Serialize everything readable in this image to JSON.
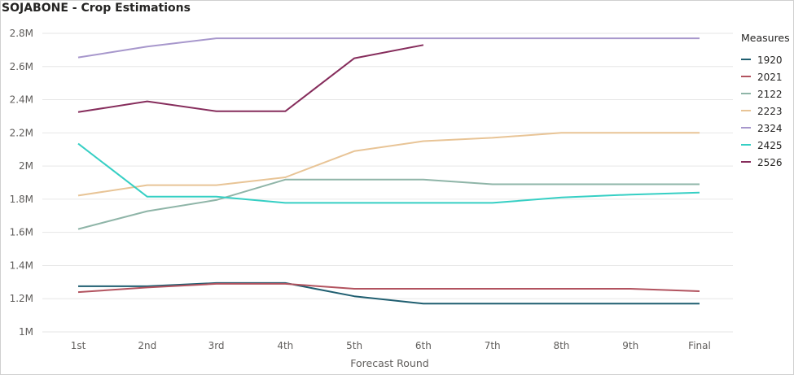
{
  "title": "SOJABONE - Crop Estimations",
  "chart_data": {
    "type": "line",
    "title": "SOJABONE - Crop Estimations",
    "xlabel": "Forecast Round",
    "ylabel": "",
    "categories": [
      "1st",
      "2nd",
      "3rd",
      "4th",
      "5th",
      "6th",
      "7th",
      "8th",
      "9th",
      "Final"
    ],
    "ylim": [
      1000000,
      2800000
    ],
    "yticks": [
      1000000,
      1200000,
      1400000,
      1600000,
      1800000,
      2000000,
      2200000,
      2400000,
      2600000,
      2800000
    ],
    "ytick_labels": [
      "1M",
      "1.2M",
      "1.4M",
      "1.6M",
      "1.8M",
      "2M",
      "2.2M",
      "2.4M",
      "2.6M",
      "2.8M"
    ],
    "grid": true,
    "legend_title": "Measures",
    "legend_position": "right",
    "series": [
      {
        "name": "1920",
        "color": "#1f5e70",
        "values": [
          1275000,
          1275000,
          1295000,
          1295000,
          1215000,
          1170000,
          1170000,
          1170000,
          1170000,
          1170000
        ]
      },
      {
        "name": "2021",
        "color": "#b2535f",
        "values": [
          1240000,
          1268000,
          1290000,
          1290000,
          1260000,
          1260000,
          1260000,
          1260000,
          1260000,
          1245000
        ]
      },
      {
        "name": "2122",
        "color": "#8fb5a8",
        "values": [
          1620000,
          1728000,
          1795000,
          1918000,
          1918000,
          1918000,
          1890000,
          1890000,
          1890000,
          1890000
        ]
      },
      {
        "name": "2223",
        "color": "#e8c496",
        "values": [
          1822000,
          1885000,
          1885000,
          1932000,
          2090000,
          2150000,
          2170000,
          2200000,
          2200000,
          2200000
        ]
      },
      {
        "name": "2324",
        "color": "#a797cc",
        "values": [
          2655000,
          2720000,
          2770000,
          2770000,
          2770000,
          2770000,
          2770000,
          2770000,
          2770000,
          2770000
        ]
      },
      {
        "name": "2425",
        "color": "#36cfc4",
        "values": [
          2135000,
          1815000,
          1815000,
          1778000,
          1778000,
          1778000,
          1778000,
          1810000,
          1828000,
          1840000
        ]
      },
      {
        "name": "2526",
        "color": "#862d5c",
        "values": [
          2325000,
          2390000,
          2330000,
          2330000,
          2650000,
          2730000,
          null,
          null,
          null,
          null
        ]
      }
    ]
  }
}
